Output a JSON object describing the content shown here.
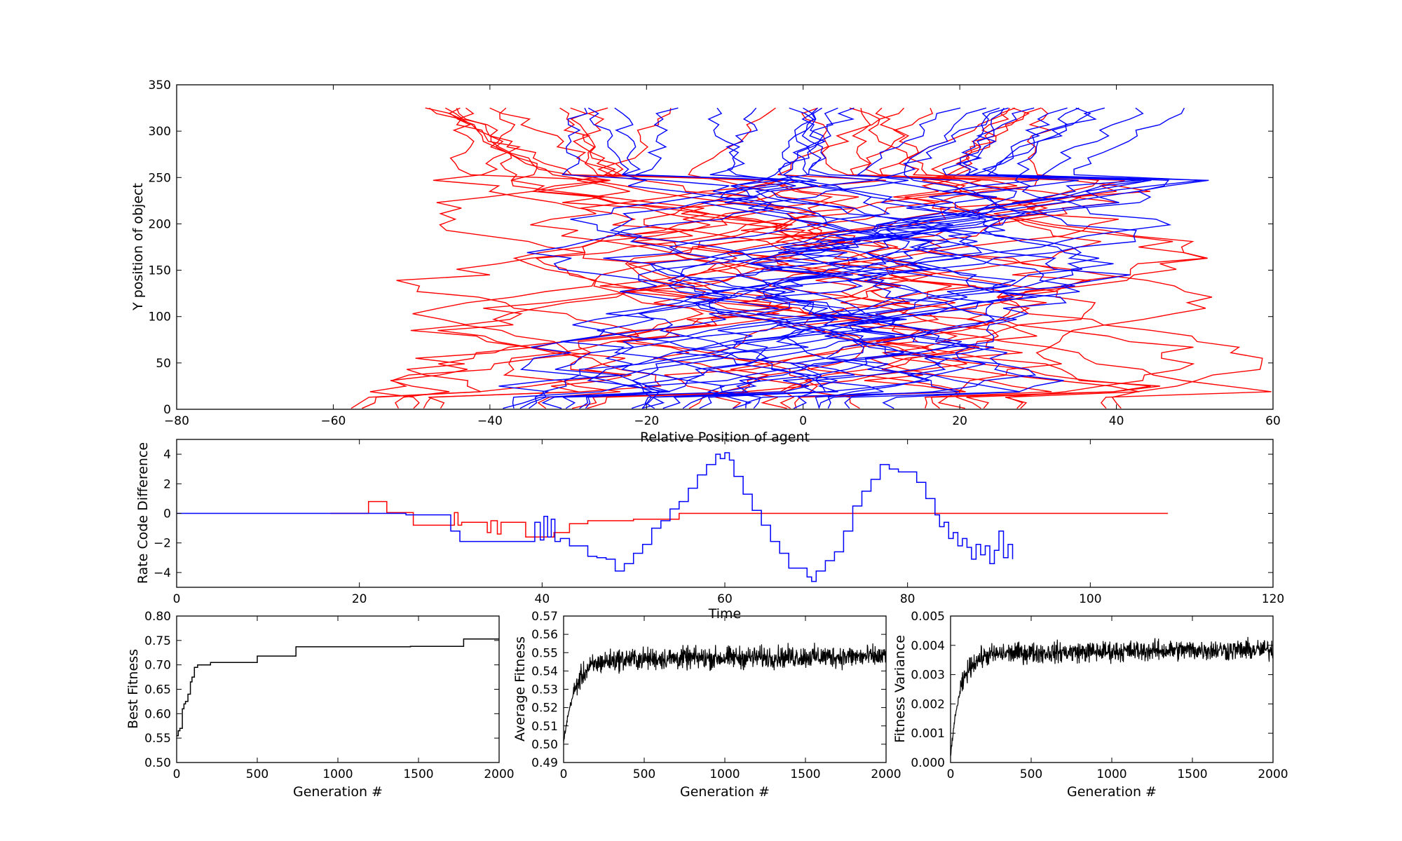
{
  "chart_data": [
    {
      "id": "trajectories",
      "type": "line",
      "title": "",
      "xlabel": "Relative Position of agent",
      "ylabel": "Y position of object",
      "xlim": [
        -80,
        60
      ],
      "ylim": [
        0,
        350
      ],
      "xticks": [
        -80,
        -60,
        -40,
        -20,
        0,
        20,
        40,
        60
      ],
      "yticks": [
        0,
        50,
        100,
        150,
        200,
        250,
        300,
        350
      ],
      "xtick_labels": [
        "−80",
        "−60",
        "−40",
        "−20",
        "0",
        "20",
        "40",
        "60"
      ],
      "ytick_labels": [
        "0",
        "50",
        "100",
        "150",
        "200",
        "250",
        "300",
        "350"
      ],
      "series": [
        {
          "name": "red trajectories",
          "color": "#ff0000",
          "count": 24,
          "y_start": 325,
          "x_start_range": [
            -51,
            51
          ],
          "x_end_range": [
            -60,
            46
          ]
        },
        {
          "name": "blue trajectories",
          "color": "#0000ff",
          "count": 24,
          "y_start": 325,
          "x_start_range": [
            -38,
            51
          ],
          "x_end_range": [
            -41,
            12
          ]
        }
      ]
    },
    {
      "id": "rate_code",
      "type": "line",
      "xlabel": "Time",
      "ylabel": "Rate Code Difference",
      "xlim": [
        0,
        120
      ],
      "ylim": [
        -5,
        5
      ],
      "xticks": [
        0,
        20,
        40,
        60,
        80,
        100,
        120
      ],
      "yticks": [
        -4,
        -2,
        0,
        2,
        4
      ],
      "xtick_labels": [
        "0",
        "20",
        "40",
        "60",
        "80",
        "100",
        "120"
      ],
      "ytick_labels": [
        "−4",
        "−2",
        "0",
        "2",
        "4"
      ],
      "series": [
        {
          "name": "red",
          "color": "#ff0000",
          "x": [
            16.8,
            20.9,
            21.0,
            22.9,
            23.0,
            25.8,
            25.9,
            30.3,
            30.4,
            30.8,
            31.2,
            33.5,
            34.0,
            34.4,
            35.1,
            35.5,
            36.0,
            37.8,
            38.2,
            40.9,
            41.3,
            42.7,
            43.0,
            44.5,
            45.0,
            50.0,
            55.0,
            108.5
          ],
          "y": [
            0,
            0,
            0.8,
            0.8,
            0.05,
            0.05,
            -0.8,
            -0.8,
            0.05,
            -0.8,
            -0.6,
            -0.6,
            -1.3,
            -0.5,
            -1.4,
            -0.6,
            -0.6,
            -0.6,
            -1.6,
            -1.6,
            -1.3,
            -1.3,
            -0.7,
            -0.7,
            -0.5,
            -0.4,
            0,
            0
          ]
        },
        {
          "name": "blue",
          "color": "#0000ff",
          "x": [
            0,
            25,
            25.1,
            29,
            30,
            31,
            34,
            38.5,
            39.2,
            39.8,
            40.2,
            40.6,
            41.0,
            41.4,
            42.0,
            43.0,
            44.0,
            45.0,
            46.0,
            47.0,
            48.0,
            49.0,
            50.0,
            51.0,
            52.0,
            53.0,
            54.0,
            55.0,
            56.0,
            57.0,
            58.0,
            59.0,
            59.5,
            60.0,
            60.5,
            61.0,
            62.0,
            63.0,
            64.0,
            65.0,
            66.0,
            67.0,
            68.0,
            69.0,
            69.5,
            70.0,
            71.0,
            72.0,
            73.0,
            74.0,
            75.0,
            76.0,
            77.0,
            78.0,
            79.0,
            80.0,
            81.0,
            82.0,
            83.0,
            83.5,
            84.0,
            84.5,
            85.0,
            85.5,
            86.0,
            86.5,
            87.0,
            87.5,
            88.0,
            88.5,
            89.0,
            89.5,
            90.0,
            90.5,
            91.0,
            91.5
          ],
          "y": [
            0,
            0,
            -0.1,
            -0.1,
            -1.2,
            -1.9,
            -1.9,
            -1.9,
            -0.6,
            -1.8,
            -0.2,
            -1.6,
            -0.4,
            -1.9,
            -1.7,
            -2.2,
            -2.2,
            -2.9,
            -3.0,
            -3.1,
            -3.9,
            -3.4,
            -2.7,
            -2.1,
            -1.0,
            -0.5,
            0.3,
            0.8,
            1.7,
            2.6,
            3.3,
            4.0,
            3.7,
            4.1,
            3.6,
            2.5,
            1.3,
            0.2,
            -0.8,
            -1.9,
            -2.7,
            -3.7,
            -3.7,
            -4.3,
            -4.6,
            -3.9,
            -3.2,
            -2.6,
            -1.2,
            0.5,
            1.5,
            2.3,
            3.3,
            3.0,
            2.8,
            2.8,
            2.1,
            1.0,
            -0.1,
            -0.9,
            -0.6,
            -1.7,
            -1.3,
            -2.2,
            -1.7,
            -2.3,
            -3.1,
            -2.1,
            -2.8,
            -2.2,
            -3.4,
            -2.5,
            -1.2,
            -3.0,
            -2.1,
            -3.1
          ]
        }
      ]
    },
    {
      "id": "best_fitness",
      "type": "line",
      "xlabel": "Generation #",
      "ylabel": "Best Fitness",
      "xlim": [
        0,
        2000
      ],
      "ylim": [
        0.5,
        0.8
      ],
      "xticks": [
        0,
        500,
        1000,
        1500,
        2000
      ],
      "yticks": [
        0.5,
        0.55,
        0.6,
        0.65,
        0.7,
        0.75,
        0.8
      ],
      "xtick_labels": [
        "0",
        "500",
        "1000",
        "1500",
        "2000"
      ],
      "ytick_labels": [
        "0.50",
        "0.55",
        "0.60",
        "0.65",
        "0.70",
        "0.75",
        "0.80"
      ],
      "step_x": [
        0,
        10,
        20,
        35,
        45,
        55,
        70,
        85,
        95,
        110,
        130,
        160,
        210,
        500,
        740,
        1450,
        1780,
        2000
      ],
      "step_y": [
        0.555,
        0.565,
        0.57,
        0.61,
        0.62,
        0.625,
        0.64,
        0.665,
        0.675,
        0.695,
        0.7,
        0.7,
        0.705,
        0.718,
        0.737,
        0.738,
        0.753,
        0.753
      ],
      "color": "#000000"
    },
    {
      "id": "average_fitness",
      "type": "line",
      "xlabel": "Generation #",
      "ylabel": "Average Fitness",
      "xlim": [
        0,
        2000
      ],
      "ylim": [
        0.49,
        0.57
      ],
      "xticks": [
        0,
        500,
        1000,
        1500,
        2000
      ],
      "yticks": [
        0.49,
        0.5,
        0.51,
        0.52,
        0.53,
        0.54,
        0.55,
        0.56,
        0.57
      ],
      "xtick_labels": [
        "0",
        "500",
        "1000",
        "1500",
        "2000"
      ],
      "ytick_labels": [
        "0.49",
        "0.50",
        "0.51",
        "0.52",
        "0.53",
        "0.54",
        "0.55",
        "0.56",
        "0.57"
      ],
      "start": 0.501,
      "plateau": 0.546,
      "rise_scale": 70,
      "noise": 0.006,
      "color": "#000000"
    },
    {
      "id": "fitness_variance",
      "type": "line",
      "xlabel": "Generation #",
      "ylabel": "Fitness Variance",
      "xlim": [
        0,
        2000
      ],
      "ylim": [
        0,
        0.005
      ],
      "xticks": [
        0,
        500,
        1000,
        1500,
        2000
      ],
      "yticks": [
        0,
        0.001,
        0.002,
        0.003,
        0.004,
        0.005
      ],
      "xtick_labels": [
        "0",
        "500",
        "1000",
        "1500",
        "2000"
      ],
      "ytick_labels": [
        "0.000",
        "0.001",
        "0.002",
        "0.003",
        "0.004",
        "0.005"
      ],
      "start": 0.0002,
      "plateau": 0.0037,
      "rise_scale": 60,
      "noise": 0.00035,
      "color": "#000000"
    }
  ]
}
